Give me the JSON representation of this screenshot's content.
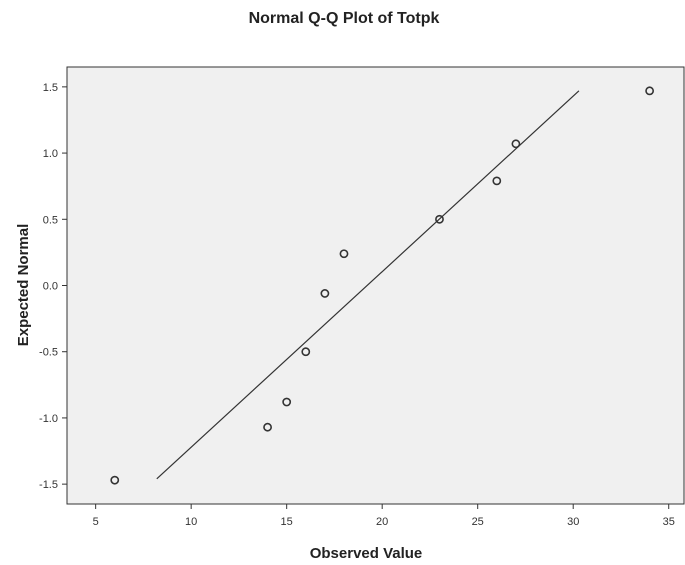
{
  "chart_data": {
    "type": "scatter",
    "title": "Normal Q-Q Plot of Totpk",
    "xlabel": "Observed Value",
    "ylabel": "Expected Normal",
    "xlim": [
      3.5,
      35.8
    ],
    "ylim": [
      -1.65,
      1.65
    ],
    "x_ticks": [
      "5",
      "10",
      "15",
      "20",
      "25",
      "30",
      "35"
    ],
    "y_ticks": [
      "-1.5",
      "-1.0",
      "-0.5",
      "0.0",
      "0.5",
      "1.0",
      "1.5"
    ],
    "points": [
      {
        "x": 6,
        "y": -1.47
      },
      {
        "x": 14,
        "y": -1.07
      },
      {
        "x": 15,
        "y": -0.88
      },
      {
        "x": 16,
        "y": -0.5
      },
      {
        "x": 17,
        "y": -0.06
      },
      {
        "x": 18,
        "y": 0.24
      },
      {
        "x": 23,
        "y": 0.5
      },
      {
        "x": 26,
        "y": 0.79
      },
      {
        "x": 27,
        "y": 1.07
      },
      {
        "x": 34,
        "y": 1.47
      }
    ],
    "reference_line": {
      "x": [
        8.2,
        30.3
      ],
      "y": [
        -1.46,
        1.47
      ]
    },
    "grid": false,
    "legend": "none",
    "colors": {
      "plot_background": "#f0f0f0",
      "point_stroke": "#333333",
      "line": "#333333",
      "axis": "#333333"
    }
  }
}
